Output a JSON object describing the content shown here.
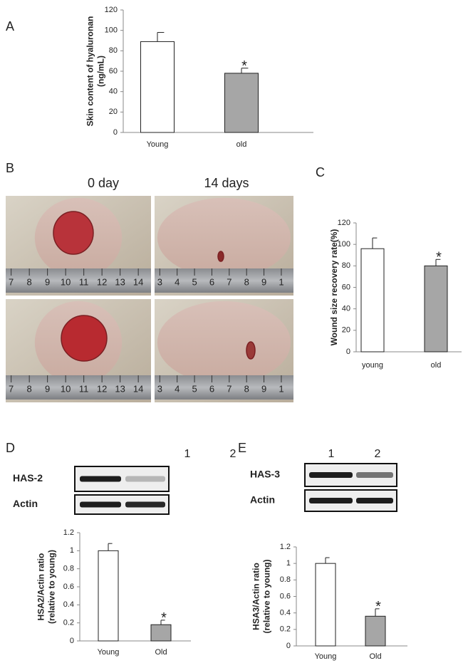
{
  "panels": {
    "a": "A",
    "b": "B",
    "c": "C",
    "d": "D",
    "e": "E"
  },
  "photo_labels": [
    "0 day",
    "14 days"
  ],
  "rulers": [
    [
      "7",
      "8",
      "9",
      "10",
      "11",
      "12",
      "13",
      "14"
    ],
    [
      "3",
      "4",
      "5",
      "6",
      "7",
      "8",
      "9",
      "1"
    ],
    [
      "7",
      "8",
      "9",
      "10",
      "11",
      "12",
      "13",
      "14"
    ],
    [
      "3",
      "4",
      "5",
      "6",
      "7",
      "8",
      "9",
      "1"
    ]
  ],
  "blots": [
    {
      "lanes": [
        "1",
        "2"
      ],
      "rows": [
        "HAS-2",
        "Actin"
      ]
    },
    {
      "lanes": [
        "1",
        "2"
      ],
      "rows": [
        "HAS-3",
        "Actin"
      ]
    }
  ],
  "chart_data": [
    {
      "type": "bar",
      "y_label": [
        "Skin content of hyaluronan",
        "(ng/mL)"
      ],
      "categories": [
        "Young",
        "old"
      ],
      "values": [
        89,
        58
      ],
      "errors": [
        9,
        5
      ],
      "colors": [
        "#ffffff",
        "#a6a6a6"
      ],
      "ylim": [
        0,
        120
      ],
      "yticks": [
        0,
        20,
        40,
        60,
        80,
        100,
        120
      ],
      "significance": "*"
    },
    {
      "type": "bar",
      "y_label": [
        "Wound size recovery rate(%)"
      ],
      "categories": [
        "young",
        "old"
      ],
      "values": [
        96,
        80
      ],
      "errors": [
        10,
        6
      ],
      "colors": [
        "#ffffff",
        "#a6a6a6"
      ],
      "ylim": [
        0,
        120
      ],
      "yticks": [
        0,
        20,
        40,
        60,
        80,
        100,
        120
      ],
      "significance": "*"
    },
    {
      "type": "bar",
      "y_label": [
        "HSA2/Actin ratio",
        "(relative to young)"
      ],
      "categories": [
        "Young",
        "Old"
      ],
      "values": [
        1.0,
        0.18
      ],
      "errors": [
        0.08,
        0.05
      ],
      "colors": [
        "#ffffff",
        "#a6a6a6"
      ],
      "ylim": [
        0,
        1.2
      ],
      "yticks": [
        0,
        0.2,
        0.4,
        0.6,
        0.8,
        1,
        1.2
      ],
      "significance": "*"
    },
    {
      "type": "bar",
      "y_label": [
        "HSA3/Actin ratio",
        "(relative to young)"
      ],
      "categories": [
        "Young",
        "Old"
      ],
      "values": [
        1.0,
        0.36
      ],
      "errors": [
        0.07,
        0.09
      ],
      "colors": [
        "#ffffff",
        "#a6a6a6"
      ],
      "ylim": [
        0,
        1.2
      ],
      "yticks": [
        0,
        0.2,
        0.4,
        0.6,
        0.8,
        1,
        1.2
      ],
      "significance": "*"
    }
  ]
}
